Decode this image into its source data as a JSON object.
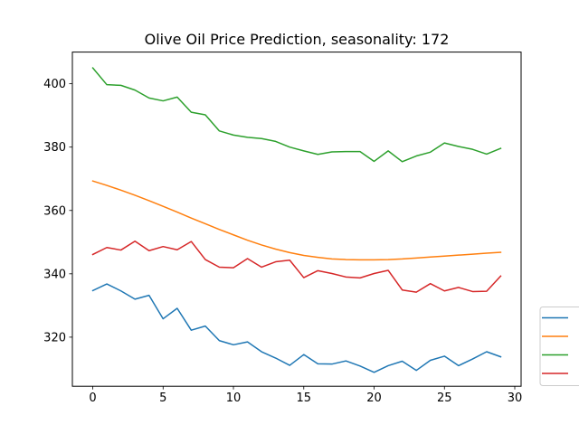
{
  "chart_data": {
    "type": "line",
    "title": "Olive Oil Price Prediction, seasonality: 172",
    "xlabel": "",
    "ylabel": "",
    "xlim": [
      -1.45,
      30.45
    ],
    "ylim": [
      304.5,
      410
    ],
    "x_ticks": [
      0,
      5,
      10,
      15,
      20,
      25,
      30
    ],
    "y_ticks": [
      320,
      340,
      360,
      380,
      400
    ],
    "grid": false,
    "legend_position": "lower-right outside",
    "x": [
      0,
      1,
      2,
      3,
      4,
      5,
      6,
      7,
      8,
      9,
      10,
      11,
      12,
      13,
      14,
      15,
      16,
      17,
      18,
      19,
      20,
      21,
      22,
      23,
      24,
      25,
      26,
      27,
      28,
      29
    ],
    "series": [
      {
        "color": "#1f77b4",
        "values": [
          334.7,
          336.8,
          334.6,
          332.0,
          333.2,
          325.8,
          329.1,
          322.2,
          323.5,
          318.9,
          317.6,
          318.5,
          315.4,
          313.4,
          311.1,
          314.5,
          311.6,
          311.5,
          312.5,
          310.9,
          308.9,
          311.0,
          312.4,
          309.5,
          312.7,
          314.0,
          311.0,
          313.1,
          315.4,
          313.8
        ]
      },
      {
        "color": "#ff7f0e",
        "values": [
          369.3,
          367.9,
          366.4,
          364.8,
          363.1,
          361.3,
          359.5,
          357.6,
          355.8,
          354.0,
          352.3,
          350.6,
          349.1,
          347.8,
          346.7,
          345.8,
          345.2,
          344.7,
          344.5,
          344.4,
          344.4,
          344.5,
          344.7,
          345.0,
          345.3,
          345.6,
          345.9,
          346.2,
          346.5,
          346.8
        ]
      },
      {
        "color": "#2ca02c",
        "values": [
          405.0,
          399.7,
          399.5,
          398.0,
          395.5,
          394.6,
          395.8,
          391.0,
          390.2,
          385.1,
          383.8,
          383.1,
          382.7,
          381.8,
          380.0,
          378.8,
          377.7,
          378.5,
          378.6,
          378.6,
          375.5,
          378.8,
          375.4,
          377.2,
          378.4,
          381.3,
          380.2,
          379.3,
          377.8,
          379.6
        ]
      },
      {
        "color": "#d62728",
        "values": [
          346.1,
          348.3,
          347.5,
          350.3,
          347.3,
          348.6,
          347.6,
          350.2,
          344.5,
          342.1,
          341.9,
          344.8,
          342.1,
          343.8,
          344.3,
          338.8,
          341.0,
          340.1,
          339.0,
          338.7,
          340.1,
          341.1,
          334.9,
          334.2,
          336.9,
          334.6,
          335.7,
          334.4,
          334.5,
          339.3
        ]
      }
    ]
  }
}
